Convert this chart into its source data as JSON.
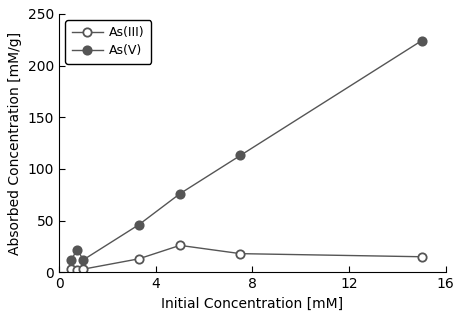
{
  "AsIII_x": [
    0.5,
    0.75,
    1.0,
    3.3,
    5.0,
    7.5,
    15.0
  ],
  "AsIII_y": [
    3.0,
    2.0,
    3.0,
    13.0,
    26.0,
    18.0,
    15.0
  ],
  "AsV_x": [
    0.5,
    0.75,
    1.0,
    3.3,
    5.0,
    7.5,
    15.0
  ],
  "AsV_y": [
    12.0,
    22.0,
    12.0,
    46.0,
    76.0,
    113.0,
    224.0
  ],
  "xlabel": "Initial Concentration [mM]",
  "ylabel": "Absorbed Concentration [mM/g]",
  "xlim": [
    0,
    16
  ],
  "ylim": [
    0,
    250
  ],
  "xticks": [
    0,
    4,
    8,
    12,
    16
  ],
  "yticks": [
    0,
    50,
    100,
    150,
    200,
    250
  ],
  "legend_labels": [
    "As(III)",
    "As(V)"
  ],
  "line_color": "#555555",
  "bg_color": "#ffffff",
  "label_fontsize": 10,
  "tick_fontsize": 10,
  "legend_fontsize": 9,
  "marker_size": 6,
  "line_width": 1.0
}
